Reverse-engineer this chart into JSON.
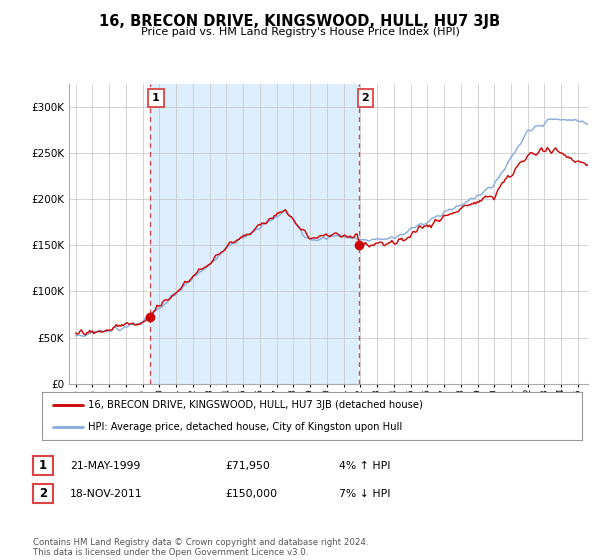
{
  "title": "16, BRECON DRIVE, KINGSWOOD, HULL, HU7 3JB",
  "subtitle": "Price paid vs. HM Land Registry's House Price Index (HPI)",
  "sale1_date": "21-MAY-1999",
  "sale1_price": 71950,
  "sale1_hpi": "4% ↑ HPI",
  "sale2_date": "18-NOV-2011",
  "sale2_price": 150000,
  "sale2_hpi": "7% ↓ HPI",
  "legend_line1": "16, BRECON DRIVE, KINGSWOOD, HULL, HU7 3JB (detached house)",
  "legend_line2": "HPI: Average price, detached house, City of Kingston upon Hull",
  "footer": "Contains HM Land Registry data © Crown copyright and database right 2024.\nThis data is licensed under the Open Government Licence v3.0.",
  "sale_color": "#cc0000",
  "hpi_color": "#88aadd",
  "vline_color": "#dd4444",
  "shade_color": "#ddeeff",
  "bg_color": "#ffffff",
  "grid_color": "#cccccc",
  "ylim": [
    0,
    325000
  ],
  "yticks": [
    0,
    50000,
    100000,
    150000,
    200000,
    250000,
    300000
  ]
}
